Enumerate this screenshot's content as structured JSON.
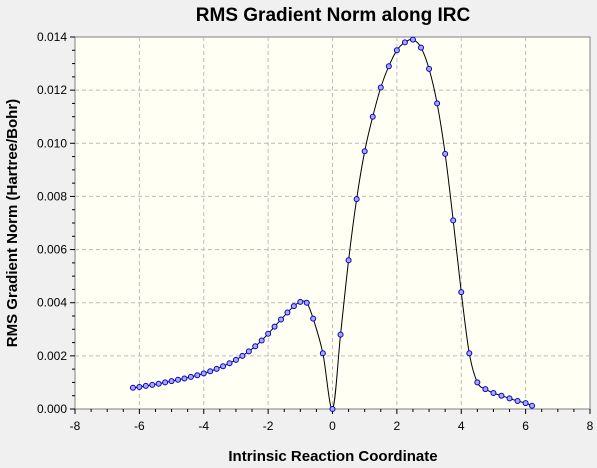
{
  "chart_data": {
    "type": "line",
    "title": "RMS Gradient Norm along IRC",
    "xlabel": "Intrinsic Reaction Coordinate",
    "ylabel": "RMS Gradient Norm (Hartree/Bohr)",
    "xlim": [
      -8,
      8
    ],
    "ylim": [
      0,
      0.014
    ],
    "x_ticks": [
      "-8",
      "-6",
      "-4",
      "-2",
      "0",
      "2",
      "4",
      "6",
      "8"
    ],
    "y_ticks": [
      "0.000",
      "0.002",
      "0.004",
      "0.006",
      "0.008",
      "0.010",
      "0.012",
      "0.014"
    ],
    "grid": true,
    "colors": {
      "background": "#f0f0f0",
      "plot_background": "#fffff4",
      "line": "#000000",
      "marker_fill": "#aaaaff",
      "marker_stroke": "#0000cc",
      "grid": "#bbbbbb"
    },
    "series": [
      {
        "x": [
          -6.2,
          -6.0,
          -5.8,
          -5.6,
          -5.4,
          -5.2,
          -5.0,
          -4.8,
          -4.6,
          -4.4,
          -4.2,
          -4.0,
          -3.8,
          -3.6,
          -3.4,
          -3.2,
          -3.0,
          -2.8,
          -2.6,
          -2.4,
          -2.2,
          -2.0,
          -1.8,
          -1.6,
          -1.4,
          -1.2,
          -1.0,
          -0.8,
          -0.6,
          -0.3,
          0.0,
          0.25,
          0.5,
          0.75,
          1.0,
          1.25,
          1.5,
          1.75,
          2.0,
          2.25,
          2.5,
          2.75,
          3.0,
          3.25,
          3.5,
          3.75,
          4.0,
          4.25,
          4.5,
          4.75,
          5.0,
          5.25,
          5.5,
          5.75,
          6.0,
          6.2
        ],
        "y": [
          0.0008,
          0.00083,
          0.00087,
          0.00091,
          0.00095,
          0.001,
          0.00105,
          0.0011,
          0.00115,
          0.00121,
          0.00127,
          0.00134,
          0.00142,
          0.00151,
          0.00161,
          0.00172,
          0.00185,
          0.002,
          0.00217,
          0.00236,
          0.00258,
          0.00283,
          0.0031,
          0.00337,
          0.00363,
          0.00387,
          0.00403,
          0.004,
          0.0034,
          0.0021,
          0.0,
          0.0028,
          0.0056,
          0.0079,
          0.0097,
          0.011,
          0.0121,
          0.0129,
          0.0135,
          0.0138,
          0.0139,
          0.0136,
          0.0128,
          0.0115,
          0.0096,
          0.0071,
          0.0044,
          0.0021,
          0.001,
          0.00075,
          0.0006,
          0.0005,
          0.0004,
          0.0003,
          0.00022,
          0.00012
        ]
      }
    ]
  }
}
